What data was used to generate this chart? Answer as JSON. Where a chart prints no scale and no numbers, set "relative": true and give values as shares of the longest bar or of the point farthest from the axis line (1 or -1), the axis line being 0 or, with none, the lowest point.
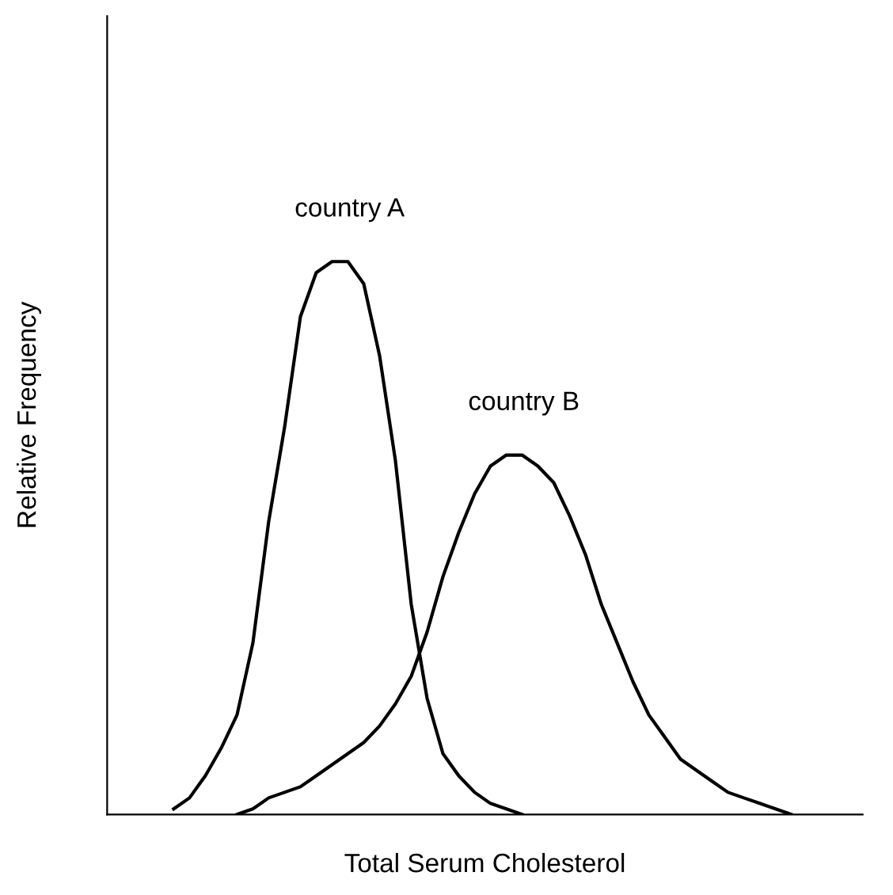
{
  "chart_data": {
    "type": "line",
    "relative": true,
    "xlabel": "Total Serum Cholesterol",
    "ylabel": "Relative Frequency",
    "grid": false,
    "legend": false,
    "marker": "none",
    "line_style": "solid",
    "categories": [
      null,
      null,
      null,
      null,
      null,
      null,
      null,
      null,
      null,
      null,
      null,
      null,
      null,
      null,
      null,
      null,
      null,
      null,
      null,
      null,
      null,
      null,
      null,
      null,
      null,
      null,
      null,
      null,
      null,
      null,
      null,
      null,
      null,
      null,
      null,
      null,
      null,
      null,
      null,
      null,
      null,
      null,
      null,
      null,
      null,
      null,
      null,
      null
    ],
    "series": [
      {
        "name": "country A",
        "color": "#000000",
        "values": [
          null,
          null,
          null,
          null,
          0.01,
          0.03,
          0.07,
          0.12,
          0.18,
          0.31,
          0.53,
          0.7,
          0.9,
          0.98,
          1.0,
          1.0,
          0.96,
          0.83,
          0.64,
          0.38,
          0.21,
          0.11,
          0.07,
          0.04,
          0.02,
          0.01,
          0,
          null,
          null,
          null,
          null,
          null,
          null,
          null,
          null,
          null,
          null,
          null,
          null,
          null,
          null,
          null,
          null,
          null,
          null,
          null,
          null,
          null
        ]
      },
      {
        "name": "country B",
        "color": "#000000",
        "values": [
          null,
          null,
          null,
          null,
          null,
          null,
          null,
          null,
          0,
          0.01,
          0.03,
          0.04,
          0.05,
          0.07,
          0.09,
          0.11,
          0.13,
          0.16,
          0.2,
          0.25,
          0.33,
          0.43,
          0.51,
          0.58,
          0.63,
          0.65,
          0.65,
          0.63,
          0.6,
          0.54,
          0.47,
          0.38,
          0.31,
          0.24,
          0.18,
          0.14,
          0.1,
          0.08,
          0.06,
          0.04,
          0.03,
          0.02,
          0.01,
          0,
          null,
          null,
          null,
          null
        ]
      }
    ]
  }
}
